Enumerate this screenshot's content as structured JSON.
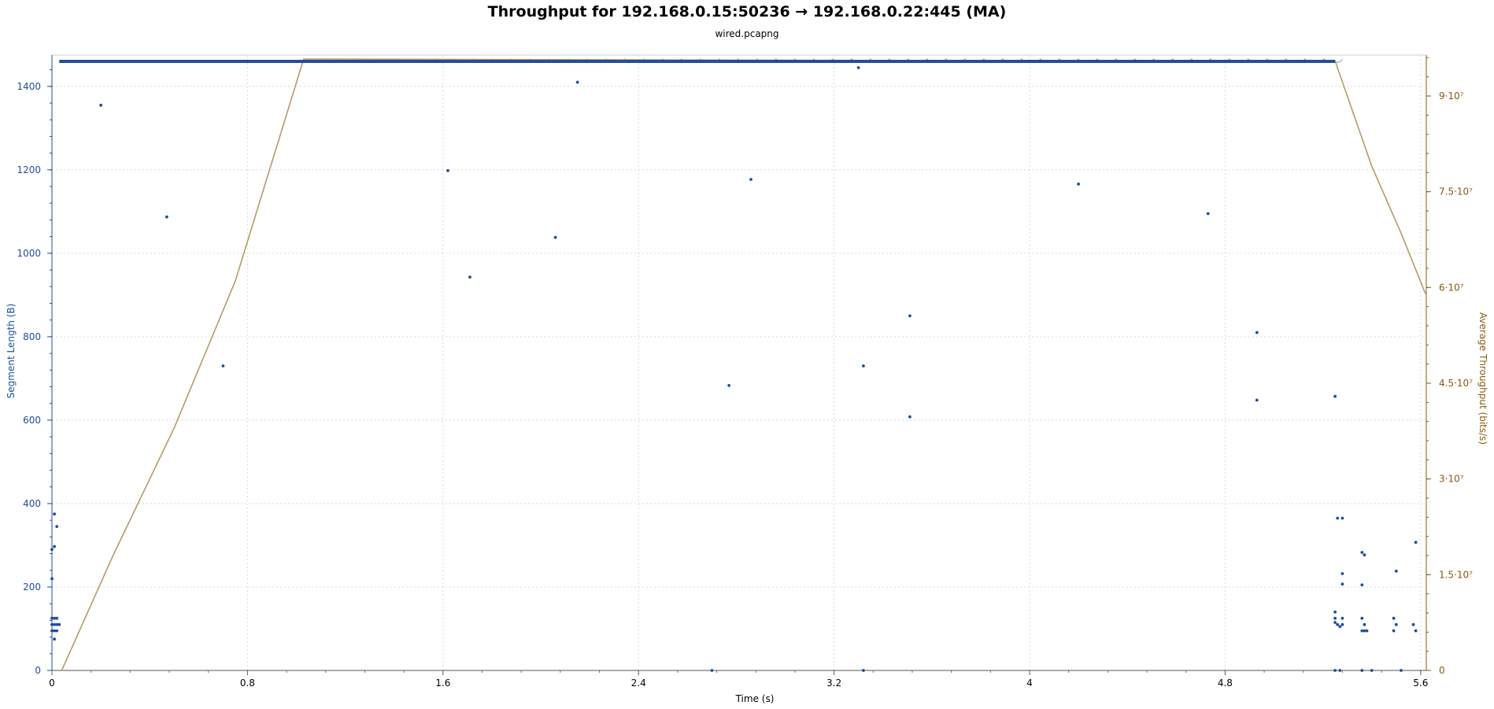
{
  "chart_data": {
    "type": "scatter",
    "title": "Throughput for 192.168.0.15:50236 → 192.168.0.22:445 (MA)",
    "subtitle": "wired.pcapng",
    "xlabel": "Time (s)",
    "ylabel_left": "Segment Length (B)",
    "ylabel_right": "Average Throughput (bits/s)",
    "xlim": [
      0,
      5.62
    ],
    "ylim_left": [
      0,
      1480
    ],
    "ylim_right": [
      0,
      96500000
    ],
    "x_ticks": [
      "0",
      "0.8",
      "1.6",
      "2.4",
      "3.2",
      "4",
      "4.8",
      "5.6"
    ],
    "y_left_ticks": [
      "0",
      "200",
      "400",
      "600",
      "800",
      "1000",
      "1200",
      "1400"
    ],
    "y_right_ticks": [
      "0",
      "1.5·10⁷",
      "3·10⁷",
      "4.5·10⁷",
      "6·10⁷",
      "7.5·10⁷",
      "9·10⁷"
    ],
    "grid": true,
    "colors": {
      "segments": "#1f4e9c",
      "throughput": "#b89a6a",
      "left_axis": "#1f4e9c",
      "right_axis": "#8a5a10"
    },
    "series": [
      {
        "type": "scatter",
        "axis": "left",
        "full_segment_band": {
          "x_start": 0.03,
          "x_end": 5.25,
          "y": 1460
        },
        "points": [
          [
            0.0,
            220
          ],
          [
            0.0,
            290
          ],
          [
            0.01,
            375
          ],
          [
            0.02,
            345
          ],
          [
            0.01,
            297
          ],
          [
            0.0,
            125
          ],
          [
            0.01,
            125
          ],
          [
            0.02,
            125
          ],
          [
            0.0,
            110
          ],
          [
            0.01,
            110
          ],
          [
            0.02,
            110
          ],
          [
            0.03,
            110
          ],
          [
            0.0,
            95
          ],
          [
            0.01,
            95
          ],
          [
            0.02,
            95
          ],
          [
            0.01,
            75
          ],
          [
            0.2,
            1355
          ],
          [
            0.47,
            1087
          ],
          [
            0.7,
            730
          ],
          [
            1.62,
            1198
          ],
          [
            1.71,
            943
          ],
          [
            2.06,
            1038
          ],
          [
            2.15,
            1410
          ],
          [
            2.7,
            0
          ],
          [
            2.77,
            683
          ],
          [
            2.86,
            1177
          ],
          [
            3.3,
            1445
          ],
          [
            3.32,
            730
          ],
          [
            3.32,
            0
          ],
          [
            3.51,
            850
          ],
          [
            3.51,
            608
          ],
          [
            4.2,
            1166
          ],
          [
            4.73,
            1095
          ],
          [
            4.93,
            810
          ],
          [
            4.93,
            648
          ],
          [
            5.25,
            657
          ],
          [
            5.25,
            140
          ],
          [
            5.25,
            125
          ],
          [
            5.25,
            115
          ],
          [
            5.26,
            110
          ],
          [
            5.27,
            105
          ],
          [
            5.25,
            0
          ],
          [
            5.27,
            0
          ],
          [
            5.26,
            365
          ],
          [
            5.28,
            365
          ],
          [
            5.28,
            232
          ],
          [
            5.28,
            207
          ],
          [
            5.28,
            125
          ],
          [
            5.28,
            110
          ],
          [
            5.36,
            283
          ],
          [
            5.37,
            277
          ],
          [
            5.36,
            205
          ],
          [
            5.36,
            125
          ],
          [
            5.37,
            110
          ],
          [
            5.36,
            95
          ],
          [
            5.37,
            95
          ],
          [
            5.38,
            95
          ],
          [
            5.36,
            0
          ],
          [
            5.4,
            0
          ],
          [
            5.5,
            238
          ],
          [
            5.49,
            125
          ],
          [
            5.5,
            110
          ],
          [
            5.49,
            95
          ],
          [
            5.52,
            0
          ],
          [
            5.58,
            307
          ],
          [
            5.57,
            110
          ],
          [
            5.58,
            95
          ]
        ]
      },
      {
        "type": "line",
        "axis": "right",
        "points": [
          [
            0.04,
            0
          ],
          [
            0.25,
            18000000
          ],
          [
            0.5,
            38000000
          ],
          [
            0.75,
            61000000
          ],
          [
            1.03,
            95800000
          ],
          [
            3.0,
            95600000
          ],
          [
            5.25,
            95500000
          ],
          [
            5.3,
            90000000
          ],
          [
            5.4,
            79000000
          ],
          [
            5.52,
            68500000
          ],
          [
            5.62,
            59000000
          ]
        ]
      }
    ]
  }
}
